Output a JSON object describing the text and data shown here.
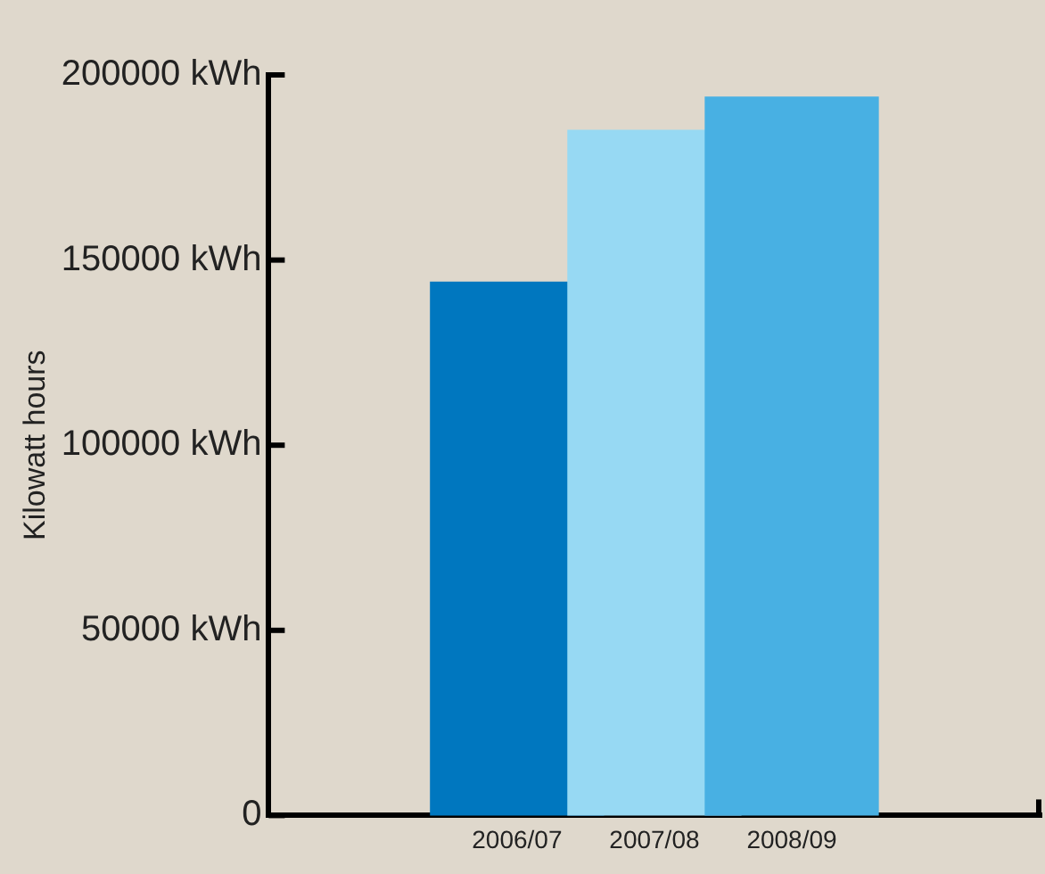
{
  "chart_data": {
    "type": "bar",
    "ylabel": "Kilowatt hours",
    "categories": [
      "2006/07",
      "2007/08",
      "2008/09"
    ],
    "colors": [
      "#0077bf",
      "#97d9f3",
      "#48b0e3"
    ],
    "values": [
      144000,
      185000,
      194000
    ],
    "ylim": [
      0,
      200000
    ],
    "yticks": [
      0,
      {
        "value": 50000,
        "label": "50000 kWh"
      },
      {
        "value": 100000,
        "label": "100000 kWh"
      },
      {
        "value": 150000,
        "label": "150000 kWh"
      },
      {
        "value": 200000,
        "label": "200000 kWh"
      }
    ],
    "grid": false,
    "legend": false
  }
}
